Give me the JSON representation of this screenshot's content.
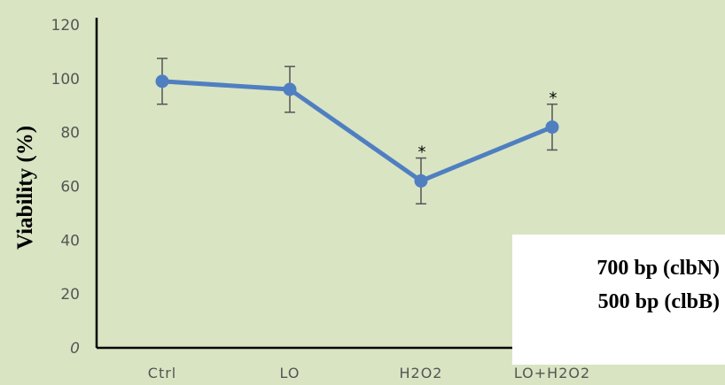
{
  "chart_data": {
    "type": "line",
    "categories": [
      "Ctrl",
      "LO",
      "H2O2",
      "LO+H2O2"
    ],
    "series": [
      {
        "values": [
          99,
          96,
          62,
          82
        ],
        "errors": [
          8.5,
          8.5,
          8.5,
          8.5
        ],
        "color": "#4f7fc1"
      }
    ],
    "significance": [
      "",
      "",
      "*",
      "*"
    ],
    "ylabel": "Viability (%)",
    "ylim": [
      0,
      120
    ],
    "yticks": [
      0,
      20,
      40,
      60,
      80,
      100,
      120
    ],
    "grid": false,
    "legend": "none"
  },
  "annotation": {
    "lines": [
      "700 bp (clbN)",
      "500 bp (clbB)"
    ]
  },
  "colors": {
    "background": "#d9e4c3",
    "series": "#4f7fc1",
    "axis": "#000000",
    "error_bar": "#555555"
  }
}
